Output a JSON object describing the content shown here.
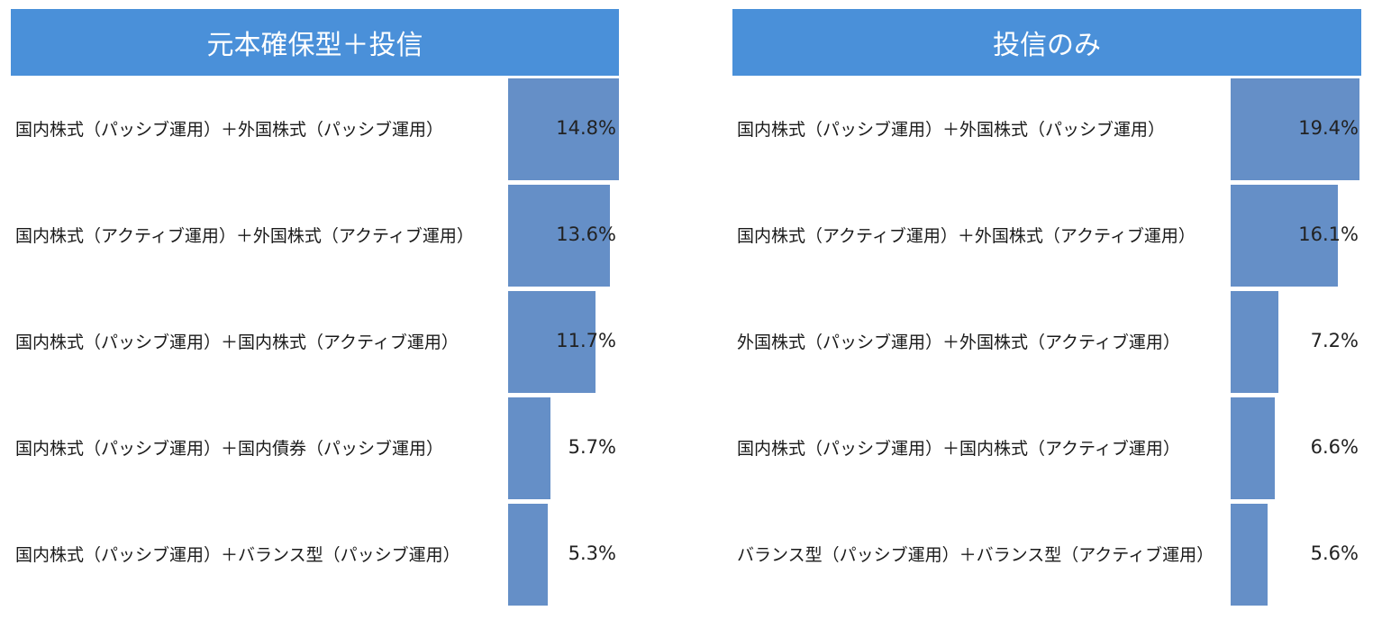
{
  "chart_data": [
    {
      "type": "bar",
      "orientation": "horizontal",
      "title": "元本確保型＋投信",
      "categories": [
        "国内株式（パッシブ運用）＋外国株式（パッシブ運用）",
        "国内株式（アクティブ運用）＋外国株式（アクティブ運用）",
        "国内株式（パッシブ運用）＋国内株式（アクティブ運用）",
        "国内株式（パッシブ運用）＋国内債券（パッシブ運用）",
        "国内株式（パッシブ運用）＋バランス型（パッシブ運用）"
      ],
      "values": [
        14.8,
        13.6,
        11.7,
        5.7,
        5.3
      ],
      "value_labels": [
        "14.8%",
        "13.6%",
        "11.7%",
        "5.7%",
        "5.3%"
      ],
      "xlim": [
        0,
        14.8
      ],
      "color": "#658fc7",
      "header_color": "#4a90d9"
    },
    {
      "type": "bar",
      "orientation": "horizontal",
      "title": "投信のみ",
      "categories": [
        "国内株式（パッシブ運用）＋外国株式（パッシブ運用）",
        "国内株式（アクティブ運用）＋外国株式（アクティブ運用）",
        "外国株式（パッシブ運用）＋外国株式（アクティブ運用）",
        "国内株式（パッシブ運用）＋国内株式（アクティブ運用）",
        "バランス型（パッシブ運用）＋バランス型（アクティブ運用）"
      ],
      "values": [
        19.4,
        16.1,
        7.2,
        6.6,
        5.6
      ],
      "value_labels": [
        "19.4%",
        "16.1%",
        "7.2%",
        "6.6%",
        "5.6%"
      ],
      "xlim": [
        0,
        19.4
      ],
      "color": "#658fc7",
      "header_color": "#4a90d9"
    }
  ]
}
